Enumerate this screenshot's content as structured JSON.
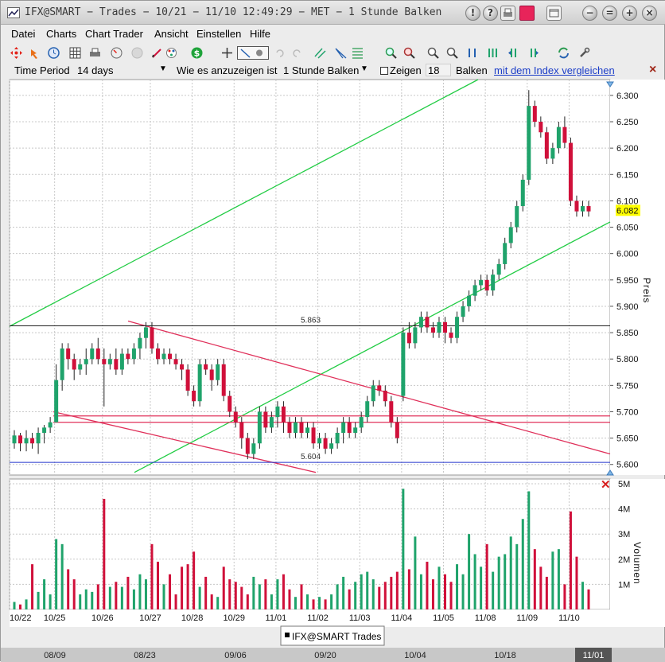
{
  "window": {
    "title": "IFX@SMART − Trades − 10/21 − 11/10 12:49:29  − MET − 1 Stunde Balken"
  },
  "menu": [
    {
      "label": "Datei"
    },
    {
      "label": "Charts"
    },
    {
      "label": "Chart Trader"
    },
    {
      "label": "Ansicht"
    },
    {
      "label": "Einstellen"
    },
    {
      "label": "Hilfe"
    }
  ],
  "options": {
    "time_period_label": "Time Period",
    "time_period_value": "14 days",
    "display_label": "Wie es anzuzeigen ist",
    "display_value": "1 Stunde Balken",
    "show_label": "Zeigen",
    "show_value": "18",
    "bars_label": "Balken",
    "compare_link": "mit dem Index vergleichen",
    "close_symbol": "×"
  },
  "colors": {
    "up": "#1fa36b",
    "down": "#d0103a",
    "channel_green": "#22cc44",
    "channel_red": "#e0305a",
    "level_line": "#222222",
    "support_line": "#2233cc",
    "highlight": "#ffff00"
  },
  "chart": {
    "price_axis_label": "Preis",
    "volume_axis_label": "Volumen",
    "current_price": "6.082",
    "level_high_label": "5.863",
    "level_low_label": "5.604",
    "legend_label": "IFX@SMART Trades",
    "remove_volume_symbol": "✕"
  },
  "chart_data": {
    "type": "candlestick",
    "title": "",
    "price": {
      "ylabel": "Preis",
      "ylim": [
        5.58,
        6.32
      ],
      "ticks": [
        "6.300",
        "6.250",
        "6.200",
        "6.150",
        "6.100",
        "6.050",
        "6.000",
        "5.950",
        "5.900",
        "5.850",
        "5.800",
        "5.750",
        "5.700",
        "5.650",
        "5.600"
      ],
      "levels": [
        {
          "value": 5.863,
          "label": "5.863"
        },
        {
          "value": 5.604,
          "label": "5.604"
        }
      ]
    },
    "volume": {
      "ylabel": "Volumen",
      "ylim": [
        0,
        5
      ],
      "ticks": [
        "5M",
        "4M",
        "3M",
        "2M",
        "1M"
      ]
    },
    "x_labels": [
      "10/22",
      "10/25",
      "10/26",
      "10/27",
      "10/28",
      "10/29",
      "11/01",
      "11/02",
      "11/03",
      "11/04",
      "11/05",
      "11/08",
      "11/09",
      "11/10"
    ],
    "bottom_labels": [
      "08/09",
      "08/23",
      "09/06",
      "09/20",
      "10/04",
      "10/18",
      "11/01"
    ],
    "candles": [
      [
        5.64,
        5.655,
        5.63,
        5.665,
        0.3
      ],
      [
        5.655,
        5.64,
        5.625,
        5.66,
        0.2
      ],
      [
        5.64,
        5.65,
        5.625,
        5.665,
        0.4
      ],
      [
        5.65,
        5.64,
        5.63,
        5.66,
        1.8
      ],
      [
        5.64,
        5.66,
        5.62,
        5.67,
        0.7
      ],
      [
        5.66,
        5.67,
        5.64,
        5.675,
        1.2
      ],
      [
        5.67,
        5.68,
        5.66,
        5.69,
        0.6
      ],
      [
        5.68,
        5.76,
        5.68,
        5.79,
        2.8
      ],
      [
        5.76,
        5.82,
        5.74,
        5.83,
        2.6
      ],
      [
        5.82,
        5.8,
        5.78,
        5.83,
        1.6
      ],
      [
        5.8,
        5.78,
        5.76,
        5.81,
        1.2
      ],
      [
        5.78,
        5.79,
        5.77,
        5.8,
        0.6
      ],
      [
        5.79,
        5.8,
        5.77,
        5.82,
        0.8
      ],
      [
        5.8,
        5.82,
        5.79,
        5.83,
        0.7
      ],
      [
        5.82,
        5.8,
        5.79,
        5.84,
        1.0
      ],
      [
        5.8,
        5.79,
        5.71,
        5.82,
        4.4
      ],
      [
        5.79,
        5.8,
        5.78,
        5.81,
        0.9
      ],
      [
        5.8,
        5.78,
        5.77,
        5.82,
        1.1
      ],
      [
        5.78,
        5.81,
        5.77,
        5.82,
        0.9
      ],
      [
        5.81,
        5.8,
        5.79,
        5.82,
        1.3
      ],
      [
        5.8,
        5.82,
        5.79,
        5.83,
        0.8
      ],
      [
        5.82,
        5.84,
        5.8,
        5.85,
        1.4
      ],
      [
        5.84,
        5.86,
        5.82,
        5.87,
        1.2
      ],
      [
        5.86,
        5.82,
        5.81,
        5.87,
        2.6
      ],
      [
        5.82,
        5.8,
        5.79,
        5.83,
        1.9
      ],
      [
        5.8,
        5.81,
        5.79,
        5.82,
        1.0
      ],
      [
        5.81,
        5.8,
        5.79,
        5.82,
        1.4
      ],
      [
        5.8,
        5.79,
        5.78,
        5.81,
        0.6
      ],
      [
        5.79,
        5.78,
        5.76,
        5.8,
        1.7
      ],
      [
        5.78,
        5.74,
        5.73,
        5.79,
        1.8
      ],
      [
        5.74,
        5.72,
        5.71,
        5.75,
        2.3
      ],
      [
        5.72,
        5.79,
        5.71,
        5.8,
        0.9
      ],
      [
        5.79,
        5.78,
        5.77,
        5.8,
        1.3
      ],
      [
        5.78,
        5.76,
        5.74,
        5.79,
        0.6
      ],
      [
        5.76,
        5.79,
        5.75,
        5.8,
        0.5
      ],
      [
        5.79,
        5.73,
        5.72,
        5.8,
        1.7
      ],
      [
        5.73,
        5.7,
        5.69,
        5.74,
        1.2
      ],
      [
        5.7,
        5.68,
        5.67,
        5.71,
        1.1
      ],
      [
        5.68,
        5.65,
        5.63,
        5.69,
        0.9
      ],
      [
        5.65,
        5.62,
        5.61,
        5.66,
        0.6
      ],
      [
        5.62,
        5.64,
        5.61,
        5.65,
        1.3
      ],
      [
        5.64,
        5.7,
        5.63,
        5.71,
        1.0
      ],
      [
        5.7,
        5.67,
        5.66,
        5.71,
        1.2
      ],
      [
        5.67,
        5.69,
        5.66,
        5.7,
        0.6
      ],
      [
        5.69,
        5.71,
        5.67,
        5.72,
        1.2
      ],
      [
        5.71,
        5.68,
        5.66,
        5.72,
        1.4
      ],
      [
        5.68,
        5.66,
        5.65,
        5.69,
        0.8
      ],
      [
        5.66,
        5.68,
        5.65,
        5.69,
        0.5
      ],
      [
        5.68,
        5.66,
        5.65,
        5.69,
        1.0
      ],
      [
        5.66,
        5.67,
        5.65,
        5.68,
        0.6
      ],
      [
        5.67,
        5.64,
        5.63,
        5.68,
        0.4
      ],
      [
        5.64,
        5.65,
        5.63,
        5.66,
        0.5
      ],
      [
        5.65,
        5.63,
        5.62,
        5.66,
        0.4
      ],
      [
        5.63,
        5.64,
        5.62,
        5.65,
        0.6
      ],
      [
        5.64,
        5.66,
        5.63,
        5.67,
        1.0
      ],
      [
        5.66,
        5.68,
        5.64,
        5.69,
        1.3
      ],
      [
        5.68,
        5.66,
        5.65,
        5.69,
        0.8
      ],
      [
        5.66,
        5.67,
        5.65,
        5.68,
        1.1
      ],
      [
        5.67,
        5.69,
        5.66,
        5.7,
        1.4
      ],
      [
        5.69,
        5.72,
        5.68,
        5.73,
        1.5
      ],
      [
        5.72,
        5.75,
        5.71,
        5.76,
        1.2
      ],
      [
        5.75,
        5.74,
        5.73,
        5.76,
        0.9
      ],
      [
        5.74,
        5.72,
        5.71,
        5.75,
        1.1
      ],
      [
        5.72,
        5.68,
        5.67,
        5.73,
        1.3
      ],
      [
        5.68,
        5.65,
        5.64,
        5.69,
        1.5
      ],
      [
        5.73,
        5.85,
        5.72,
        5.86,
        4.8
      ],
      [
        5.85,
        5.83,
        5.82,
        5.87,
        1.6
      ],
      [
        5.83,
        5.86,
        5.82,
        5.87,
        2.9
      ],
      [
        5.86,
        5.88,
        5.85,
        5.89,
        1.4
      ],
      [
        5.88,
        5.86,
        5.85,
        5.89,
        1.9
      ],
      [
        5.86,
        5.85,
        5.84,
        5.87,
        1.2
      ],
      [
        5.85,
        5.87,
        5.84,
        5.88,
        1.7
      ],
      [
        5.87,
        5.85,
        5.83,
        5.88,
        1.4
      ],
      [
        5.85,
        5.84,
        5.83,
        5.86,
        1.1
      ],
      [
        5.84,
        5.88,
        5.83,
        5.89,
        1.8
      ],
      [
        5.88,
        5.9,
        5.87,
        5.91,
        1.4
      ],
      [
        5.9,
        5.92,
        5.89,
        5.93,
        3.0
      ],
      [
        5.92,
        5.94,
        5.91,
        5.95,
        2.2
      ],
      [
        5.94,
        5.95,
        5.93,
        5.96,
        1.7
      ],
      [
        5.95,
        5.93,
        5.92,
        5.96,
        2.6
      ],
      [
        5.93,
        5.96,
        5.92,
        5.97,
        1.5
      ],
      [
        5.96,
        5.98,
        5.95,
        5.99,
        2.1
      ],
      [
        5.98,
        6.02,
        5.97,
        6.03,
        2.2
      ],
      [
        6.02,
        6.05,
        6.01,
        6.06,
        2.9
      ],
      [
        6.05,
        6.09,
        6.04,
        6.1,
        2.6
      ],
      [
        6.09,
        6.14,
        6.08,
        6.15,
        3.6
      ],
      [
        6.14,
        6.28,
        6.13,
        6.31,
        4.7
      ],
      [
        6.28,
        6.25,
        6.24,
        6.29,
        2.4
      ],
      [
        6.25,
        6.23,
        6.22,
        6.26,
        1.7
      ],
      [
        6.23,
        6.18,
        6.17,
        6.24,
        1.3
      ],
      [
        6.18,
        6.2,
        6.17,
        6.21,
        2.3
      ],
      [
        6.2,
        6.24,
        6.19,
        6.25,
        2.4
      ],
      [
        6.24,
        6.21,
        6.2,
        6.26,
        1.0
      ],
      [
        6.21,
        6.1,
        6.09,
        6.22,
        3.9
      ],
      [
        6.1,
        6.08,
        6.07,
        6.11,
        2.1
      ],
      [
        6.08,
        6.09,
        6.07,
        6.1,
        1.1
      ],
      [
        6.09,
        6.08,
        6.07,
        6.1,
        0.8
      ]
    ]
  }
}
